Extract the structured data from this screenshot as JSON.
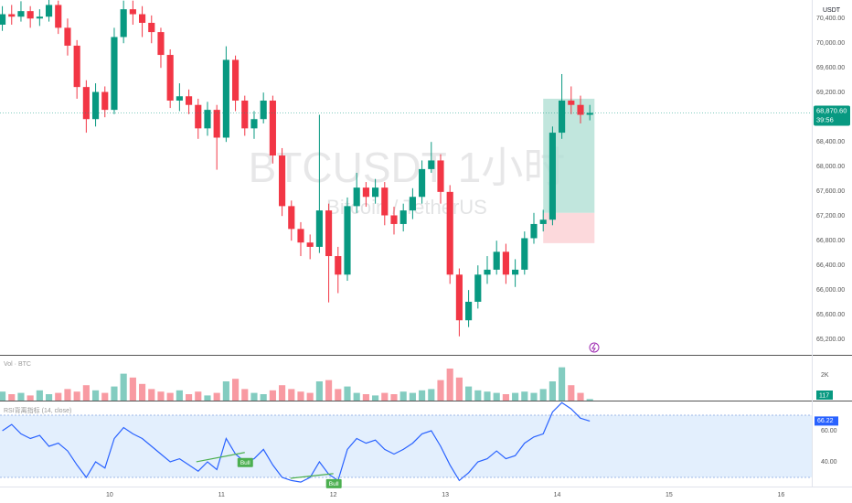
{
  "chart_data": [
    {
      "type": "candlestick",
      "title": "BTCUSDT 1小时",
      "subtitle": "Bitcoin / TetherUS",
      "unit": "USDT",
      "x": [
        -23,
        -21,
        -19,
        -17,
        -15,
        -13,
        -11,
        -9,
        -7,
        -5,
        -3,
        -1,
        1,
        3,
        5,
        7,
        9,
        11,
        13,
        15,
        17,
        19,
        21,
        23,
        25,
        27,
        29,
        31,
        33,
        35,
        37,
        39,
        41,
        43,
        45,
        47,
        49,
        51,
        53,
        55,
        57,
        59,
        61,
        63,
        65,
        67,
        69,
        71,
        73,
        75,
        77,
        79,
        81,
        83,
        85,
        87,
        89,
        91,
        93,
        95,
        97,
        99,
        101,
        103
      ],
      "open": [
        70300,
        70470,
        70430,
        70520,
        70400,
        70430,
        70620,
        70250,
        69960,
        69290,
        68770,
        69210,
        68920,
        70100,
        70550,
        70470,
        70330,
        70180,
        69810,
        69070,
        69140,
        69000,
        68620,
        68920,
        68470,
        69730,
        69070,
        68620,
        68770,
        69070,
        68180,
        67360,
        66990,
        66770,
        66700,
        67290,
        66550,
        66250,
        67360,
        67660,
        67510,
        67660,
        67210,
        67070,
        67290,
        67510,
        67960,
        68100,
        67590,
        66250,
        65510,
        65810,
        66250,
        66330,
        66620,
        66250,
        66330,
        66840,
        67070,
        67140,
        68550,
        69070,
        69000,
        68840
      ],
      "high": [
        70600,
        70620,
        70680,
        70600,
        70550,
        70700,
        70690,
        70400,
        70050,
        69400,
        69350,
        69300,
        70250,
        70690,
        70690,
        70600,
        70450,
        70250,
        69900,
        69350,
        69250,
        69100,
        69050,
        69000,
        69950,
        69800,
        69150,
        68900,
        69200,
        69150,
        68300,
        67450,
        67100,
        66900,
        68840,
        67400,
        66700,
        67500,
        67900,
        67750,
        67800,
        67750,
        67350,
        67400,
        67650,
        68100,
        68400,
        68200,
        67700,
        66350,
        66000,
        66400,
        66550,
        66800,
        66750,
        66500,
        66950,
        67250,
        67300,
        68650,
        69500,
        69300,
        69150,
        69000
      ],
      "low": [
        70200,
        70300,
        70350,
        70250,
        70280,
        70350,
        70150,
        69800,
        69100,
        68550,
        68650,
        68800,
        68850,
        70000,
        70300,
        70100,
        70000,
        69600,
        68950,
        68900,
        68850,
        68450,
        68500,
        67950,
        68400,
        68900,
        68500,
        68450,
        68700,
        68050,
        67200,
        66800,
        66550,
        66500,
        66600,
        65800,
        65950,
        66150,
        67250,
        67350,
        67400,
        67050,
        66900,
        66950,
        67150,
        67400,
        67900,
        67400,
        66100,
        65250,
        65400,
        65700,
        66100,
        66250,
        66100,
        66050,
        66250,
        66750,
        66950,
        67050,
        68450,
        68850,
        68700,
        68750
      ],
      "close": [
        70470,
        70430,
        70520,
        70400,
        70430,
        70620,
        70250,
        69960,
        69290,
        68770,
        69210,
        68920,
        70100,
        70550,
        70470,
        70330,
        70180,
        69810,
        69070,
        69140,
        69000,
        68620,
        68920,
        68470,
        69730,
        69070,
        68620,
        68770,
        69070,
        68180,
        67360,
        66990,
        66770,
        66700,
        67290,
        66550,
        66250,
        67360,
        67660,
        67510,
        67660,
        67210,
        67070,
        67290,
        67510,
        67960,
        68100,
        67590,
        66250,
        65510,
        65810,
        66250,
        66330,
        66620,
        66250,
        66330,
        66840,
        67070,
        67140,
        68550,
        69070,
        69000,
        68840,
        68870.6
      ],
      "up_color": "#089981",
      "down_color": "#f23645",
      "xlim": [
        -23.5,
        150.6
      ],
      "xticks": [
        {
          "value": 0,
          "label": "10"
        },
        {
          "value": 24,
          "label": "11"
        },
        {
          "value": 48,
          "label": "12"
        },
        {
          "value": 72,
          "label": "13"
        },
        {
          "value": 96,
          "label": "14"
        },
        {
          "value": 120,
          "label": "15"
        },
        {
          "value": 144,
          "label": "16"
        }
      ],
      "ylim": [
        64950,
        70700
      ],
      "yticks": [
        {
          "value": 65200,
          "label": "65,200.00"
        },
        {
          "value": 65600,
          "label": "65,600.00"
        },
        {
          "value": 66000,
          "label": "66,000.00"
        },
        {
          "value": 66400,
          "label": "66,400.00"
        },
        {
          "value": 66800,
          "label": "66,800.00"
        },
        {
          "value": 67200,
          "label": "67,200.00"
        },
        {
          "value": 67600,
          "label": "67,600.00"
        },
        {
          "value": 68000,
          "label": "68,000.00"
        },
        {
          "value": 68400,
          "label": "68,400.00"
        },
        {
          "value": 69200,
          "label": "69,200.00"
        },
        {
          "value": 69600,
          "label": "69,600.00"
        },
        {
          "value": 70000,
          "label": "70,000.00"
        },
        {
          "value": 70400,
          "label": "70,400.00"
        }
      ],
      "last_price": {
        "value": 68870.6,
        "label": "68,870.60"
      },
      "countdown": "39:56",
      "position": {
        "x0": 93,
        "x1": 104,
        "target": 69100,
        "entry": 67250,
        "stop": 66760,
        "target_color": "#b2e0d4",
        "stop_color": "#fbd0d3"
      }
    },
    {
      "type": "bar",
      "title": "Vol · BTC",
      "values": [
        700,
        500,
        600,
        400,
        800,
        500,
        600,
        900,
        700,
        1200,
        800,
        600,
        1100,
        2100,
        1800,
        1300,
        900,
        700,
        600,
        800,
        500,
        700,
        400,
        600,
        1500,
        1700,
        900,
        600,
        500,
        800,
        1200,
        900,
        700,
        600,
        1500,
        1600,
        900,
        1100,
        600,
        500,
        400,
        600,
        500,
        700,
        600,
        800,
        900,
        1600,
        2500,
        1800,
        1100,
        800,
        700,
        600,
        500,
        600,
        700,
        600,
        900,
        1500,
        2600,
        1200,
        600,
        117
      ],
      "ylim": [
        0,
        3430
      ],
      "yticks": [
        {
          "value": 2000,
          "label": "2K"
        }
      ]
    },
    {
      "type": "line",
      "title": "RSI背离指标 (14, close)",
      "color": "#2962ff",
      "values": [
        60,
        64,
        58,
        55,
        57,
        50,
        52,
        47,
        38,
        30,
        40,
        36,
        55,
        62,
        58,
        55,
        50,
        45,
        40,
        42,
        38,
        34,
        40,
        35,
        55,
        45,
        40,
        42,
        48,
        38,
        30,
        28,
        27,
        30,
        40,
        32,
        28,
        48,
        55,
        52,
        54,
        48,
        45,
        48,
        52,
        58,
        60,
        50,
        38,
        28,
        33,
        40,
        42,
        47,
        42,
        44,
        52,
        56,
        58,
        72,
        78,
        74,
        68,
        66.22
      ],
      "ylim": [
        24.1,
        78.2
      ],
      "yticks": [
        {
          "value": 40,
          "label": "40.00"
        },
        {
          "value": 60,
          "label": "60.00"
        }
      ],
      "band": [
        30,
        70
      ],
      "band_color": "#e3effd",
      "annotations": [
        {
          "label": "Bull",
          "x0": 18.6,
          "y0": 40,
          "x1": 29,
          "y1": 46
        },
        {
          "label": "Bull",
          "x0": 38.8,
          "y0": 29.4,
          "x1": 48,
          "y1": 32.4
        }
      ]
    }
  ]
}
